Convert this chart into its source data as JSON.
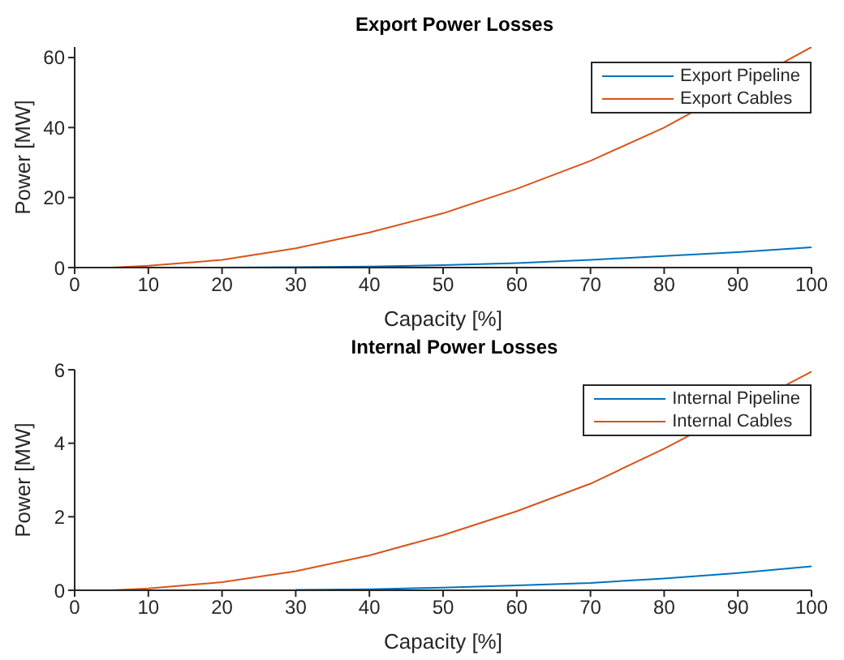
{
  "chart_data": [
    {
      "type": "line",
      "title": "Export Power Losses",
      "xlabel": "Capacity [%]",
      "ylabel": "Power [MW]",
      "x": [
        5,
        10,
        20,
        30,
        40,
        50,
        60,
        70,
        80,
        90,
        100
      ],
      "xlim": [
        0,
        100
      ],
      "xticks": [
        0,
        10,
        20,
        30,
        40,
        50,
        60,
        70,
        80,
        90,
        100
      ],
      "ylim": [
        0,
        63
      ],
      "yticks": [
        0,
        20,
        40,
        60
      ],
      "grid": false,
      "legend": "top right",
      "marker": "none",
      "line_style": "solid",
      "series": [
        {
          "name": "Export Pipeline",
          "color": "#0072bd",
          "values": [
            null,
            null,
            0,
            0.1,
            0.3,
            0.7,
            1.3,
            2.2,
            3.3,
            4.4,
            5.8
          ]
        },
        {
          "name": "Export Cables",
          "color": "#d95319",
          "values": [
            0,
            0.5,
            2.2,
            5.5,
            10,
            15.5,
            22.5,
            30.5,
            40,
            null,
            63
          ]
        }
      ]
    },
    {
      "type": "line",
      "title": "Internal Power Losses",
      "xlabel": "Capacity [%]",
      "ylabel": "Power [MW]",
      "x": [
        5,
        10,
        20,
        30,
        40,
        50,
        60,
        70,
        80,
        90,
        100
      ],
      "xlim": [
        0,
        100
      ],
      "xticks": [
        0,
        10,
        20,
        30,
        40,
        50,
        60,
        70,
        80,
        90,
        100
      ],
      "ylim": [
        0,
        6
      ],
      "yticks": [
        0,
        2,
        4,
        6
      ],
      "grid": false,
      "legend": "top right",
      "marker": "none",
      "line_style": "solid",
      "series": [
        {
          "name": "Internal Pipeline",
          "color": "#0072bd",
          "values": [
            null,
            null,
            null,
            0.01,
            0.03,
            0.07,
            0.13,
            0.2,
            0.32,
            0.47,
            0.65
          ]
        },
        {
          "name": "Internal Cables",
          "color": "#d95319",
          "values": [
            0,
            0.05,
            0.22,
            0.52,
            0.95,
            1.5,
            2.15,
            2.9,
            3.85,
            null,
            5.95
          ]
        }
      ]
    }
  ]
}
